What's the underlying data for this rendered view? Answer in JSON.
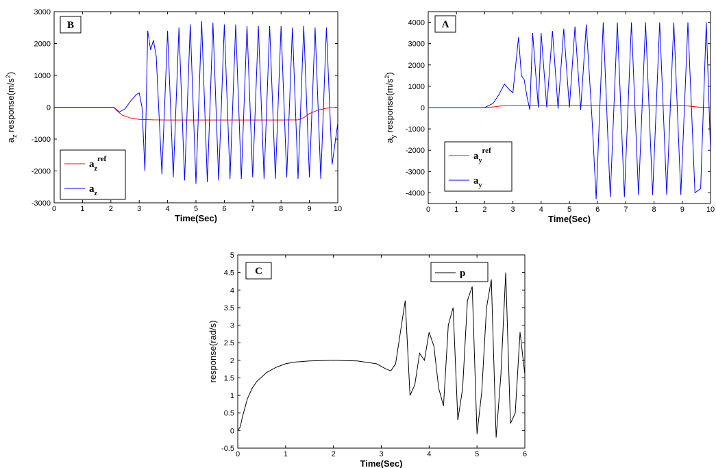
{
  "chart_data": [
    {
      "type": "line",
      "panel_label": "B",
      "xlabel": "Time(Sec)",
      "ylabel": {
        "prefix": "a",
        "sub": "z",
        "mid": " response(m/s",
        "sup": "2",
        "suffix": ")"
      },
      "xlim": [
        0,
        10
      ],
      "ylim": [
        -3000,
        3000
      ],
      "xticks": [
        "0",
        "1",
        "2",
        "3",
        "4",
        "5",
        "6",
        "7",
        "8",
        "9",
        "10"
      ],
      "yticks": [
        "-3000",
        "-2000",
        "-1000",
        "0",
        "1000",
        "2000",
        "3000"
      ],
      "legend_position": "bottom-left",
      "series": [
        {
          "name": {
            "base": "a",
            "sub": "z",
            "sup": "ref"
          },
          "color": "#ff0000",
          "x": [
            0,
            2.1,
            2.2,
            2.4,
            2.7,
            3.0,
            3.5,
            4,
            5,
            6,
            7,
            8,
            8.6,
            8.8,
            9.0,
            9.3,
            9.6,
            10
          ],
          "y": [
            0,
            0,
            -100,
            -250,
            -340,
            -380,
            -395,
            -400,
            -400,
            -400,
            -400,
            -400,
            -395,
            -330,
            -200,
            -90,
            -30,
            0
          ]
        },
        {
          "name": {
            "base": "a",
            "sub": "z"
          },
          "color": "#0000ff",
          "x": [
            0,
            2.1,
            2.3,
            2.5,
            2.7,
            2.9,
            3.0,
            3.1,
            3.2,
            3.3,
            3.4,
            3.5,
            3.6,
            3.8,
            4.0,
            4.2,
            4.4,
            4.6,
            4.8,
            5.0,
            5.2,
            5.4,
            5.6,
            5.8,
            6.0,
            6.2,
            6.4,
            6.6,
            6.8,
            7.0,
            7.2,
            7.4,
            7.6,
            7.8,
            8.0,
            8.2,
            8.4,
            8.6,
            8.8,
            9.0,
            9.2,
            9.4,
            9.6,
            9.8,
            10.0
          ],
          "y": [
            0,
            0,
            -150,
            -50,
            200,
            400,
            450,
            0,
            -2000,
            2400,
            1800,
            2100,
            1600,
            -2100,
            2400,
            -2200,
            2500,
            -2300,
            2600,
            -2400,
            2700,
            -2350,
            2650,
            -2300,
            2600,
            -2250,
            2600,
            -2250,
            2550,
            -2200,
            2550,
            -2250,
            2550,
            -2250,
            2550,
            -2200,
            2500,
            -2250,
            2550,
            -2200,
            2500,
            -2250,
            2500,
            -1800,
            -500
          ]
        }
      ]
    },
    {
      "type": "line",
      "panel_label": "A",
      "xlabel": "Time(Sec)",
      "ylabel": {
        "prefix": "a",
        "sub": "y",
        "mid": " response(m/s",
        "sup": "2",
        "suffix": ")"
      },
      "xlim": [
        0,
        10
      ],
      "ylim": [
        -4500,
        4500
      ],
      "xticks": [
        "0",
        "1",
        "2",
        "3",
        "4",
        "5",
        "6",
        "7",
        "8",
        "9",
        "10"
      ],
      "yticks": [
        "-4000",
        "-3000",
        "-2000",
        "-1000",
        "0",
        "1000",
        "2000",
        "3000",
        "4000"
      ],
      "legend_position": "bottom-left",
      "series": [
        {
          "name": {
            "base": "a",
            "sub": "y",
            "sup": "ref"
          },
          "color": "#ff0000",
          "x": [
            0,
            2.0,
            2.3,
            2.6,
            3.0,
            4,
            5,
            6,
            7,
            8,
            9.0,
            9.3,
            9.6,
            10
          ],
          "y": [
            0,
            0,
            30,
            80,
            100,
            100,
            100,
            100,
            100,
            100,
            100,
            60,
            20,
            0
          ]
        },
        {
          "name": {
            "base": "a",
            "sub": "y"
          },
          "color": "#0000ff",
          "x": [
            0,
            2.0,
            2.3,
            2.5,
            2.7,
            2.9,
            3.0,
            3.2,
            3.3,
            3.4,
            3.5,
            3.6,
            3.7,
            3.9,
            4.0,
            4.2,
            4.4,
            4.6,
            4.8,
            5.0,
            5.2,
            5.4,
            5.6,
            5.8,
            5.95,
            6.2,
            6.45,
            6.7,
            6.95,
            7.2,
            7.45,
            7.7,
            7.95,
            8.2,
            8.45,
            8.7,
            8.95,
            9.2,
            9.45,
            9.65,
            9.85,
            10.0
          ],
          "y": [
            0,
            0,
            200,
            600,
            1100,
            800,
            700,
            3300,
            1500,
            1300,
            500,
            -100,
            3500,
            0,
            3500,
            0,
            3600,
            -50,
            3700,
            0,
            3800,
            -100,
            3900,
            -500,
            -4300,
            4000,
            -4200,
            4000,
            -4200,
            4000,
            -4100,
            4000,
            -4100,
            4000,
            -4100,
            4000,
            -4100,
            4000,
            -4000,
            -3800,
            4000,
            -2000
          ]
        }
      ]
    },
    {
      "type": "line",
      "panel_label": "C",
      "xlabel": "Time(Sec)",
      "ylabel": {
        "prefix": "",
        "sub": "",
        "mid": "response(rad/s)",
        "sup": "",
        "suffix": ""
      },
      "xlim": [
        0,
        6
      ],
      "ylim": [
        -0.5,
        5
      ],
      "xticks": [
        "0",
        "1",
        "2",
        "3",
        "4",
        "5",
        "6"
      ],
      "yticks": [
        "-0.5",
        "0",
        "0.5",
        "1",
        "1.5",
        "2",
        "2.5",
        "3",
        "3.5",
        "4",
        "4.5",
        "5"
      ],
      "legend_position": "top-right",
      "series": [
        {
          "name": {
            "base": "p",
            "sub": "",
            "sup": ""
          },
          "color": "#000000",
          "x": [
            0,
            0.05,
            0.1,
            0.2,
            0.3,
            0.4,
            0.6,
            0.8,
            1.0,
            1.2,
            1.5,
            2.0,
            2.5,
            2.9,
            3.1,
            3.2,
            3.3,
            3.5,
            3.6,
            3.7,
            3.8,
            3.9,
            4.0,
            4.1,
            4.2,
            4.3,
            4.4,
            4.5,
            4.6,
            4.7,
            4.8,
            4.9,
            5.0,
            5.1,
            5.2,
            5.3,
            5.4,
            5.5,
            5.6,
            5.7,
            5.8,
            5.9,
            6.0
          ],
          "y": [
            0,
            0.1,
            0.4,
            0.9,
            1.2,
            1.4,
            1.65,
            1.8,
            1.9,
            1.95,
            1.98,
            2.0,
            1.98,
            1.9,
            1.75,
            1.7,
            1.9,
            3.7,
            1.0,
            1.3,
            2.2,
            2.0,
            2.8,
            2.4,
            1.2,
            0.7,
            3.0,
            3.5,
            0.3,
            1.2,
            3.7,
            4.1,
            -0.1,
            1.1,
            3.5,
            4.3,
            -0.2,
            1.6,
            4.5,
            0.2,
            0.5,
            2.8,
            1.6
          ]
        }
      ]
    }
  ]
}
